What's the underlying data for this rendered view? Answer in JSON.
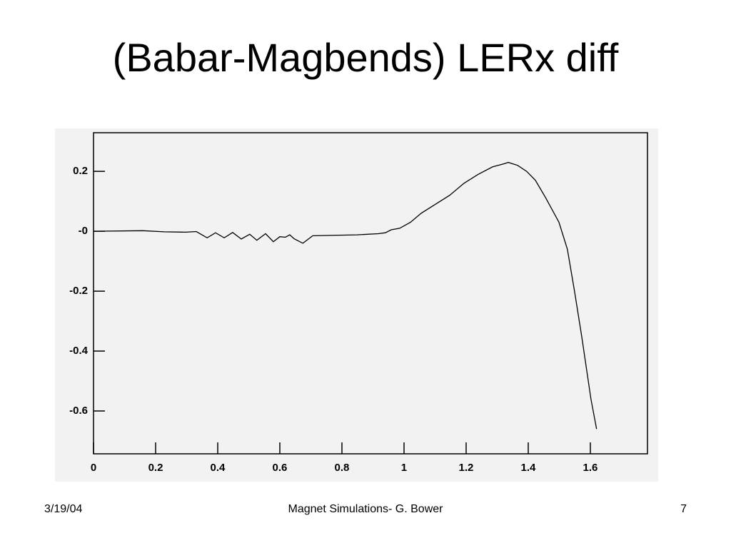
{
  "chart_data": {
    "type": "line",
    "title": "(Babar-Magbends) LERx diff",
    "x": [
      0,
      0.159,
      0.228,
      0.297,
      0.331,
      0.366,
      0.393,
      0.421,
      0.448,
      0.476,
      0.503,
      0.526,
      0.554,
      0.579,
      0.6,
      0.618,
      0.632,
      0.646,
      0.674,
      0.706,
      0.848,
      0.917,
      0.94,
      0.959,
      0.986,
      1.021,
      1.055,
      1.101,
      1.147,
      1.193,
      1.239,
      1.285,
      1.32,
      1.336,
      1.366,
      1.395,
      1.423,
      1.457,
      1.499,
      1.526,
      1.549,
      1.572,
      1.602,
      1.62
    ],
    "values": [
      0,
      0.002,
      -0.002,
      -0.003,
      -0.001,
      -0.022,
      -0.005,
      -0.022,
      -0.004,
      -0.026,
      -0.01,
      -0.03,
      -0.008,
      -0.035,
      -0.018,
      -0.02,
      -0.012,
      -0.025,
      -0.04,
      -0.015,
      -0.012,
      -0.008,
      -0.005,
      0.005,
      0.01,
      0.03,
      0.06,
      0.09,
      0.12,
      0.16,
      0.19,
      0.215,
      0.225,
      0.23,
      0.22,
      0.2,
      0.17,
      0.11,
      0.03,
      -0.06,
      -0.2,
      -0.35,
      -0.56,
      -0.66
    ],
    "color": "#000000",
    "xlim": [
      0,
      1.784
    ],
    "ylim": [
      -0.743,
      0.329
    ],
    "xticks": [
      0,
      0.2,
      0.4,
      0.6,
      0.8,
      1,
      1.2,
      1.4,
      1.6
    ],
    "yticks": [
      -0.6,
      -0.4,
      -0.2,
      {
        "value": 0,
        "label": "-0"
      },
      0.2
    ],
    "grid": false
  },
  "footer": {
    "date": "3/19/04",
    "center": "Magnet Simulations- G. Bower",
    "page": "7"
  }
}
